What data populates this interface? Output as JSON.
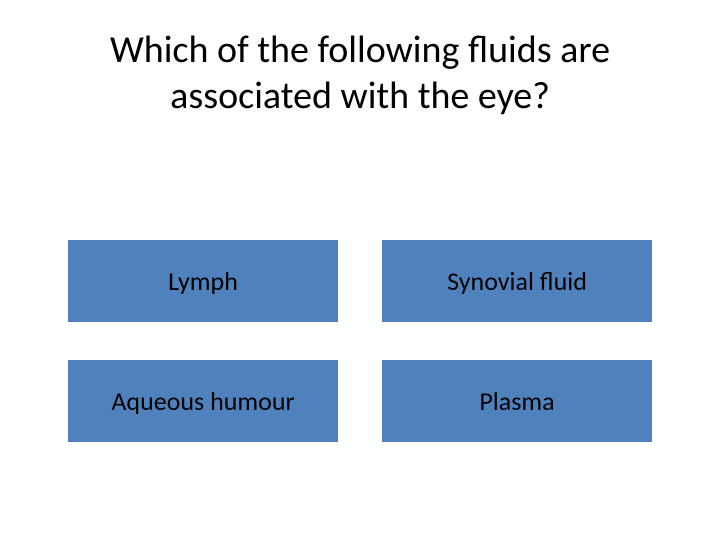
{
  "question": {
    "text": "Which of the following fluids are associated with the eye?",
    "fontsize": 38,
    "color": "#000000"
  },
  "options": [
    {
      "label": "Lymph"
    },
    {
      "label": "Synovial fluid"
    },
    {
      "label": "Aqueous humour"
    },
    {
      "label": "Plasma"
    }
  ],
  "styling": {
    "type": "infographic",
    "background_color": "#ffffff",
    "option_bg_color": "#4f81bd",
    "option_text_color": "#000000",
    "option_fontsize": 26,
    "option_width": 270,
    "option_height": 82,
    "grid_columns": 2,
    "grid_rows": 2,
    "column_gap": 44,
    "row_gap": 38,
    "font_family": "Calibri"
  }
}
